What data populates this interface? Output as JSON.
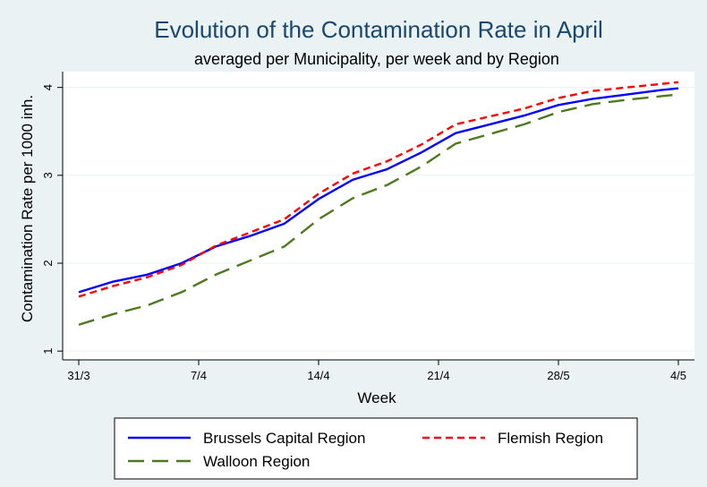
{
  "chart_data": {
    "type": "line",
    "title": "Evolution of the Contamination Rate in April",
    "subtitle": "averaged per Municipality, per week and by Region",
    "xlabel": "Week",
    "ylabel": "Contamination Rate per 1000 inh.",
    "xlim": [
      0,
      35
    ],
    "ylim": [
      0.9,
      4.18
    ],
    "x_ticks": [
      {
        "x": 0,
        "label": "31/3"
      },
      {
        "x": 7,
        "label": "7/4"
      },
      {
        "x": 14,
        "label": "14/4"
      },
      {
        "x": 21,
        "label": "21/4"
      },
      {
        "x": 28,
        "label": "28/5"
      },
      {
        "x": 35,
        "label": "4/5"
      }
    ],
    "y_ticks": [
      1,
      2,
      3,
      4
    ],
    "grid": "horizontal",
    "legend_position": "bottom",
    "x": [
      0,
      2,
      4,
      6,
      8,
      10,
      12,
      14,
      16,
      18,
      20,
      22,
      24,
      26,
      28,
      30,
      32,
      34,
      35
    ],
    "series": [
      {
        "name": "Brussels Capital Region",
        "color": "#0000ff",
        "dash": "solid",
        "values": [
          1.67,
          1.79,
          1.87,
          2.0,
          2.19,
          2.31,
          2.45,
          2.73,
          2.95,
          3.07,
          3.26,
          3.48,
          3.58,
          3.68,
          3.8,
          3.87,
          3.92,
          3.97,
          3.99
        ]
      },
      {
        "name": "Flemish Region",
        "color": "#ff0000",
        "dash": "short",
        "values": [
          1.62,
          1.74,
          1.84,
          1.98,
          2.2,
          2.35,
          2.5,
          2.79,
          3.02,
          3.16,
          3.35,
          3.58,
          3.67,
          3.76,
          3.88,
          3.96,
          4.0,
          4.04,
          4.06
        ]
      },
      {
        "name": "Walloon Region",
        "color": "#4d7a1e",
        "dash": "long",
        "values": [
          1.3,
          1.42,
          1.52,
          1.67,
          1.87,
          2.03,
          2.19,
          2.5,
          2.74,
          2.89,
          3.1,
          3.36,
          3.47,
          3.58,
          3.72,
          3.81,
          3.86,
          3.9,
          3.92
        ]
      }
    ]
  }
}
